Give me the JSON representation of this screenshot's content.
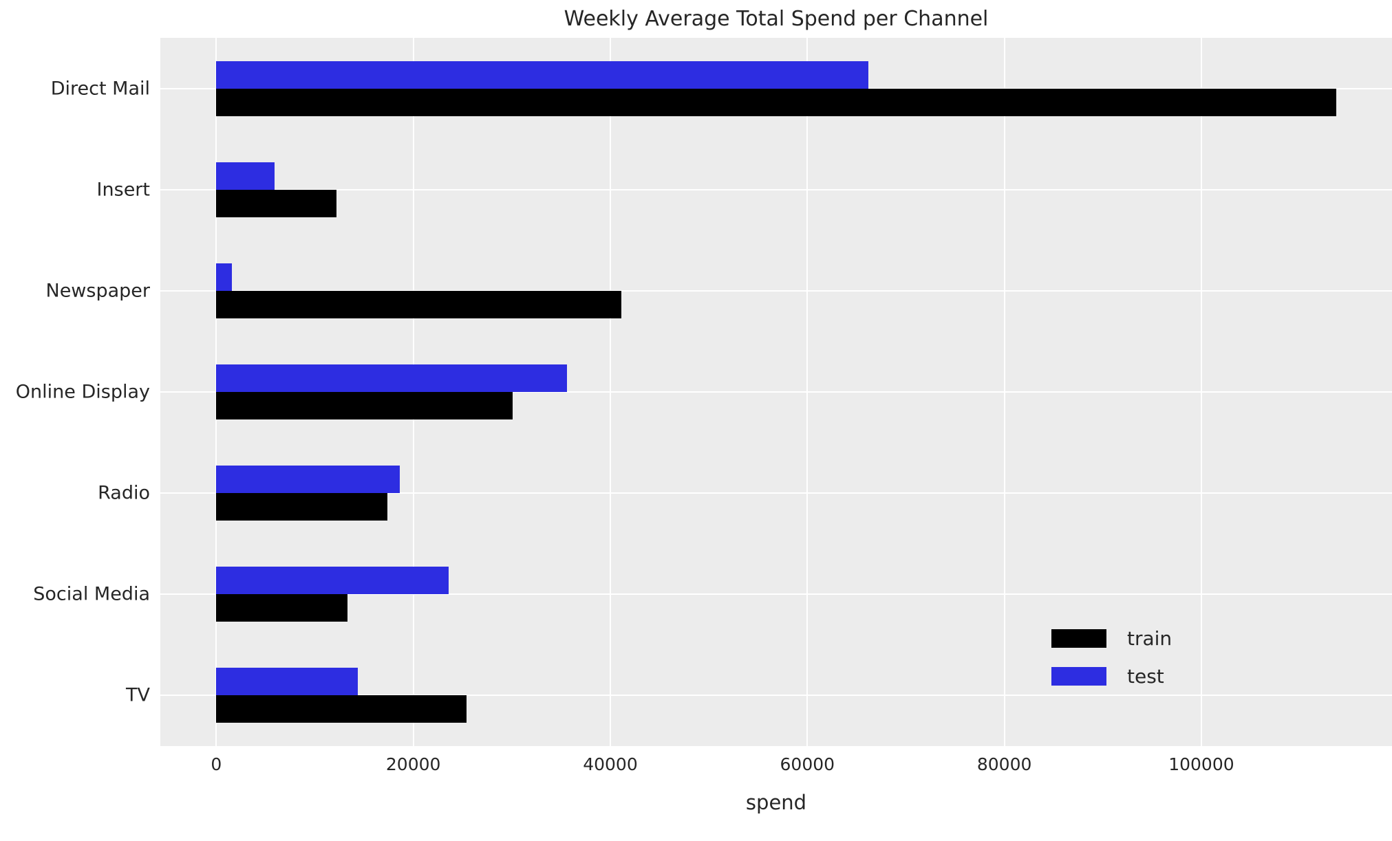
{
  "chart_data": {
    "type": "bar",
    "orientation": "horizontal",
    "title": "Weekly Average Total Spend per Channel",
    "xlabel": "spend",
    "ylabel": "",
    "categories": [
      "Direct Mail",
      "Insert",
      "Newspaper",
      "Online Display",
      "Radio",
      "Social Media",
      "TV"
    ],
    "series": [
      {
        "name": "train",
        "color": "#000000",
        "values": [
          113700,
          12200,
          41100,
          30100,
          17400,
          13300,
          25400
        ]
      },
      {
        "name": "test",
        "color": "#2d2de1",
        "values": [
          66200,
          5900,
          1600,
          35600,
          18600,
          23600,
          14400
        ]
      }
    ],
    "xticks": [
      0,
      20000,
      40000,
      60000,
      80000,
      100000
    ],
    "xtick_labels": [
      "0",
      "20000",
      "40000",
      "60000",
      "80000",
      "100000"
    ],
    "xlim": [
      -5683,
      119353
    ],
    "grid": true,
    "legend_position": "lower right",
    "legend_entries": [
      "train",
      "test"
    ],
    "colors": {
      "plot_background": "#ececec",
      "grid": "#ffffff",
      "train": "#000000",
      "test": "#2d2de1",
      "text": "#262626"
    }
  }
}
